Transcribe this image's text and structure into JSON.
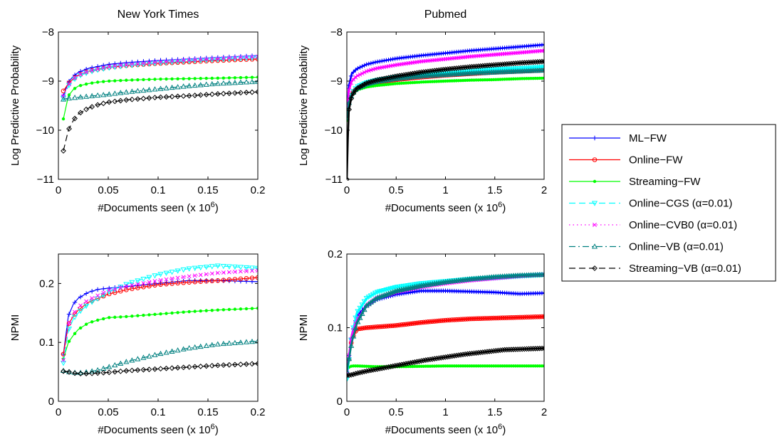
{
  "series_styles": [
    {
      "name": "ML−FW",
      "color": "#0000ff",
      "dash": "",
      "marker": "plus",
      "width": 1.2
    },
    {
      "name": "Online−FW",
      "color": "#ff0000",
      "dash": "",
      "marker": "circle",
      "width": 1.2
    },
    {
      "name": "Streaming−FW",
      "color": "#00ff00",
      "dash": "",
      "marker": "dot",
      "width": 1.2
    },
    {
      "name": "Online−CGS (α=0.01)",
      "color": "#00ffff",
      "dash": "9 5",
      "marker": "tridown",
      "width": 1.2
    },
    {
      "name": "Online−CVB0 (α=0.01)",
      "color": "#ff00ff",
      "dash": "1.5 4",
      "marker": "x",
      "width": 1.2
    },
    {
      "name": "Online−VB (α=0.01)",
      "color": "#008080",
      "dash": "9 4 2 4",
      "marker": "triup",
      "width": 1.2
    },
    {
      "name": "Streaming−VB (α=0.01)",
      "color": "#000000",
      "dash": "9 5",
      "marker": "diamond",
      "width": 1.2
    }
  ],
  "chart_data": [
    {
      "type": "line",
      "title": "New York Times",
      "xlabel": "#Documents seen (x 10",
      "xlabel_sup": "6",
      "xlabel_end": ")",
      "ylabel": "Log Predictive Probability",
      "xlim": [
        0,
        0.2
      ],
      "ylim": [
        -11,
        -8
      ],
      "xticks": [
        0,
        0.05,
        0.1,
        0.15,
        0.2
      ],
      "xticklabels": [
        "0",
        "0.05",
        "0.1",
        "0.15",
        "0.2"
      ],
      "yticks": [
        -11,
        -10,
        -9,
        -8
      ],
      "yticklabels": [
        "−11",
        "−10",
        "−9",
        "−8"
      ],
      "series": [
        {
          "name": "ML−FW",
          "x": [
            0.005,
            0.01,
            0.015,
            0.02,
            0.03,
            0.04,
            0.05,
            0.07,
            0.1,
            0.13,
            0.16,
            0.2
          ],
          "y": [
            -9.3,
            -9.02,
            -8.9,
            -8.82,
            -8.74,
            -8.7,
            -8.66,
            -8.62,
            -8.58,
            -8.55,
            -8.52,
            -8.48
          ]
        },
        {
          "name": "Online−FW",
          "x": [
            0.005,
            0.01,
            0.015,
            0.02,
            0.03,
            0.04,
            0.05,
            0.07,
            0.1,
            0.13,
            0.16,
            0.2
          ],
          "y": [
            -9.2,
            -9.05,
            -8.95,
            -8.88,
            -8.8,
            -8.76,
            -8.72,
            -8.68,
            -8.64,
            -8.61,
            -8.58,
            -8.55
          ]
        },
        {
          "name": "Streaming−FW",
          "x": [
            0.005,
            0.01,
            0.015,
            0.02,
            0.03,
            0.04,
            0.05,
            0.07,
            0.1,
            0.13,
            0.16,
            0.2
          ],
          "y": [
            -9.77,
            -9.3,
            -9.17,
            -9.1,
            -9.05,
            -9.02,
            -9.0,
            -8.98,
            -8.96,
            -8.95,
            -8.94,
            -8.92
          ]
        },
        {
          "name": "Online−CGS (α=0.01)",
          "x": [
            0.005,
            0.01,
            0.015,
            0.02,
            0.03,
            0.04,
            0.05,
            0.07,
            0.1,
            0.13,
            0.16,
            0.2
          ],
          "y": [
            -9.35,
            -9.1,
            -8.98,
            -8.9,
            -8.82,
            -8.77,
            -8.73,
            -8.68,
            -8.63,
            -8.59,
            -8.56,
            -8.52
          ]
        },
        {
          "name": "Online−CVB0 (α=0.01)",
          "x": [
            0.005,
            0.01,
            0.015,
            0.02,
            0.03,
            0.04,
            0.05,
            0.07,
            0.1,
            0.13,
            0.16,
            0.2
          ],
          "y": [
            -9.3,
            -9.08,
            -8.96,
            -8.88,
            -8.8,
            -8.75,
            -8.71,
            -8.66,
            -8.61,
            -8.57,
            -8.54,
            -8.5
          ]
        },
        {
          "name": "Online−VB (α=0.01)",
          "x": [
            0.005,
            0.01,
            0.02,
            0.03,
            0.05,
            0.07,
            0.1,
            0.13,
            0.16,
            0.2
          ],
          "y": [
            -9.37,
            -9.35,
            -9.33,
            -9.31,
            -9.27,
            -9.22,
            -9.16,
            -9.1,
            -9.05,
            -9.01
          ]
        },
        {
          "name": "Streaming−VB (α=0.01)",
          "x": [
            0.005,
            0.01,
            0.015,
            0.02,
            0.03,
            0.04,
            0.05,
            0.07,
            0.1,
            0.13,
            0.16,
            0.2
          ],
          "y": [
            -10.42,
            -10.0,
            -9.8,
            -9.67,
            -9.55,
            -9.48,
            -9.43,
            -9.38,
            -9.33,
            -9.3,
            -9.26,
            -9.22
          ]
        }
      ]
    },
    {
      "type": "line",
      "title": "Pubmed",
      "xlabel": "#Documents seen (x 10",
      "xlabel_sup": "6",
      "xlabel_end": ")",
      "ylabel": "Log Predictive Probability",
      "xlim": [
        0,
        2
      ],
      "ylim": [
        -11,
        -8
      ],
      "xticks": [
        0,
        0.5,
        1,
        1.5,
        2
      ],
      "xticklabels": [
        "0",
        "0.5",
        "1",
        "1.5",
        "2"
      ],
      "yticks": [
        -11,
        -10,
        -9,
        -8
      ],
      "yticklabels": [
        "−11",
        "−10",
        "−9",
        "−8"
      ],
      "series": [
        {
          "name": "ML−FW",
          "x": [
            0.0,
            0.02,
            0.05,
            0.1,
            0.2,
            0.3,
            0.5,
            0.75,
            1.0,
            1.25,
            1.5,
            1.75,
            2.0
          ],
          "y": [
            -9.7,
            -9.1,
            -8.85,
            -8.75,
            -8.66,
            -8.61,
            -8.54,
            -8.48,
            -8.43,
            -8.38,
            -8.34,
            -8.3,
            -8.26
          ]
        },
        {
          "name": "Online−FW",
          "x": [
            0.0,
            0.02,
            0.05,
            0.1,
            0.2,
            0.3,
            0.5,
            0.75,
            1.0,
            1.25,
            1.5,
            1.75,
            2.0
          ],
          "y": [
            -9.7,
            -9.4,
            -9.25,
            -9.15,
            -9.08,
            -9.03,
            -8.97,
            -8.92,
            -8.88,
            -8.85,
            -8.82,
            -8.8,
            -8.78
          ]
        },
        {
          "name": "Streaming−FW",
          "x": [
            0.0,
            0.02,
            0.05,
            0.1,
            0.2,
            0.3,
            0.5,
            0.75,
            1.0,
            1.25,
            1.5,
            1.75,
            2.0
          ],
          "y": [
            -9.8,
            -9.45,
            -9.28,
            -9.18,
            -9.12,
            -9.09,
            -9.05,
            -9.02,
            -9.0,
            -8.98,
            -8.97,
            -8.95,
            -8.94
          ]
        },
        {
          "name": "Online−CGS (α=0.01)",
          "x": [
            0.0,
            0.02,
            0.05,
            0.1,
            0.2,
            0.3,
            0.5,
            0.75,
            1.0,
            1.25,
            1.5,
            1.75,
            2.0
          ],
          "y": [
            -9.75,
            -9.45,
            -9.25,
            -9.12,
            -9.03,
            -8.98,
            -8.92,
            -8.87,
            -8.83,
            -8.79,
            -8.76,
            -8.74,
            -8.71
          ]
        },
        {
          "name": "Online−CVB0 (α=0.01)",
          "x": [
            0.0,
            0.02,
            0.05,
            0.1,
            0.2,
            0.3,
            0.5,
            0.75,
            1.0,
            1.25,
            1.5,
            1.75,
            2.0
          ],
          "y": [
            -9.7,
            -9.2,
            -9.0,
            -8.9,
            -8.8,
            -8.74,
            -8.67,
            -8.6,
            -8.55,
            -8.5,
            -8.46,
            -8.42,
            -8.38
          ]
        },
        {
          "name": "Online−VB (α=0.01)",
          "x": [
            0.0,
            0.02,
            0.05,
            0.1,
            0.2,
            0.3,
            0.5,
            0.75,
            1.0,
            1.25,
            1.5,
            1.75,
            2.0
          ],
          "y": [
            -9.75,
            -9.45,
            -9.27,
            -9.15,
            -9.06,
            -9.01,
            -8.95,
            -8.9,
            -8.87,
            -8.84,
            -8.82,
            -8.8,
            -8.78
          ]
        },
        {
          "name": "Streaming−VB (α=0.01)",
          "x": [
            0.0,
            0.01,
            0.02,
            0.05,
            0.1,
            0.2,
            0.3,
            0.5,
            0.75,
            1.0,
            1.25,
            1.5,
            1.75,
            2.0
          ],
          "y": [
            -11.0,
            -10.2,
            -9.6,
            -9.3,
            -9.15,
            -9.04,
            -8.98,
            -8.9,
            -8.82,
            -8.76,
            -8.71,
            -8.67,
            -8.63,
            -8.6
          ]
        }
      ]
    },
    {
      "type": "line",
      "title": "",
      "xlabel": "#Documents seen (x 10",
      "xlabel_sup": "6",
      "xlabel_end": ")",
      "ylabel": "NPMI",
      "xlim": [
        0,
        0.2
      ],
      "ylim": [
        0,
        0.25
      ],
      "xticks": [
        0,
        0.05,
        0.1,
        0.15,
        0.2
      ],
      "xticklabels": [
        "0",
        "0.05",
        "0.1",
        "0.15",
        "0.2"
      ],
      "yticks": [
        0,
        0.1,
        0.2
      ],
      "yticklabels": [
        "0",
        "0.1",
        "0.2"
      ],
      "series": [
        {
          "name": "ML−FW",
          "x": [
            0.005,
            0.01,
            0.015,
            0.02,
            0.03,
            0.04,
            0.05,
            0.07,
            0.1,
            0.13,
            0.16,
            0.2
          ],
          "y": [
            0.08,
            0.145,
            0.165,
            0.175,
            0.185,
            0.19,
            0.192,
            0.195,
            0.2,
            0.205,
            0.205,
            0.203
          ]
        },
        {
          "name": "Online−FW",
          "x": [
            0.005,
            0.01,
            0.015,
            0.02,
            0.03,
            0.04,
            0.05,
            0.07,
            0.1,
            0.13,
            0.16,
            0.2
          ],
          "y": [
            0.08,
            0.13,
            0.145,
            0.155,
            0.168,
            0.175,
            0.182,
            0.19,
            0.198,
            0.202,
            0.205,
            0.21
          ]
        },
        {
          "name": "Streaming−FW",
          "x": [
            0.005,
            0.01,
            0.015,
            0.02,
            0.03,
            0.04,
            0.05,
            0.07,
            0.1,
            0.13,
            0.16,
            0.2
          ],
          "y": [
            0.072,
            0.1,
            0.112,
            0.122,
            0.133,
            0.138,
            0.142,
            0.144,
            0.148,
            0.152,
            0.155,
            0.158
          ]
        },
        {
          "name": "Online−CGS (α=0.01)",
          "x": [
            0.005,
            0.01,
            0.015,
            0.02,
            0.03,
            0.04,
            0.05,
            0.07,
            0.1,
            0.13,
            0.16,
            0.2
          ],
          "y": [
            0.065,
            0.12,
            0.14,
            0.15,
            0.165,
            0.175,
            0.185,
            0.2,
            0.215,
            0.225,
            0.23,
            0.226
          ]
        },
        {
          "name": "Online−CVB0 (α=0.01)",
          "x": [
            0.005,
            0.01,
            0.015,
            0.02,
            0.03,
            0.04,
            0.05,
            0.07,
            0.1,
            0.13,
            0.16,
            0.2
          ],
          "y": [
            0.07,
            0.13,
            0.148,
            0.16,
            0.172,
            0.18,
            0.188,
            0.196,
            0.205,
            0.212,
            0.218,
            0.222
          ]
        },
        {
          "name": "Online−VB (α=0.01)",
          "x": [
            0.005,
            0.01,
            0.02,
            0.03,
            0.04,
            0.05,
            0.07,
            0.1,
            0.13,
            0.16,
            0.2
          ],
          "y": [
            0.052,
            0.05,
            0.048,
            0.05,
            0.053,
            0.058,
            0.068,
            0.08,
            0.09,
            0.097,
            0.102
          ]
        },
        {
          "name": "Streaming−VB (α=0.01)",
          "x": [
            0.005,
            0.01,
            0.015,
            0.02,
            0.03,
            0.04,
            0.05,
            0.07,
            0.1,
            0.13,
            0.16,
            0.2
          ],
          "y": [
            0.051,
            0.05,
            0.048,
            0.047,
            0.047,
            0.048,
            0.049,
            0.052,
            0.055,
            0.058,
            0.061,
            0.064
          ]
        }
      ]
    },
    {
      "type": "line",
      "title": "",
      "xlabel": "#Documents seen (x 10",
      "xlabel_sup": "6",
      "xlabel_end": ")",
      "ylabel": "NPMI",
      "xlim": [
        0,
        2
      ],
      "ylim": [
        0,
        0.2
      ],
      "xticks": [
        0,
        0.5,
        1,
        1.5,
        2
      ],
      "xticklabels": [
        "0",
        "0.5",
        "1",
        "1.5",
        "2"
      ],
      "yticks": [
        0,
        0.1,
        0.2
      ],
      "yticklabels": [
        "0",
        "0.1",
        "0.2"
      ],
      "series": [
        {
          "name": "ML−FW",
          "x": [
            0.0,
            0.05,
            0.1,
            0.2,
            0.3,
            0.5,
            0.75,
            1.0,
            1.25,
            1.5,
            1.75,
            2.0
          ],
          "y": [
            0.04,
            0.09,
            0.115,
            0.13,
            0.138,
            0.145,
            0.15,
            0.15,
            0.149,
            0.148,
            0.146,
            0.147
          ]
        },
        {
          "name": "Online−FW",
          "x": [
            0.0,
            0.05,
            0.1,
            0.2,
            0.3,
            0.5,
            0.75,
            1.0,
            1.25,
            1.5,
            1.75,
            2.0
          ],
          "y": [
            0.035,
            0.085,
            0.098,
            0.1,
            0.101,
            0.103,
            0.107,
            0.11,
            0.112,
            0.113,
            0.114,
            0.115
          ]
        },
        {
          "name": "Streaming−FW",
          "x": [
            0.0,
            0.05,
            0.1,
            0.3,
            0.5,
            1.0,
            1.5,
            2.0
          ],
          "y": [
            0.045,
            0.048,
            0.048,
            0.047,
            0.047,
            0.048,
            0.048,
            0.048
          ]
        },
        {
          "name": "Online−CGS (α=0.01)",
          "x": [
            0.0,
            0.05,
            0.1,
            0.2,
            0.3,
            0.5,
            0.75,
            1.0,
            1.25,
            1.5,
            1.75,
            2.0
          ],
          "y": [
            0.03,
            0.09,
            0.12,
            0.14,
            0.148,
            0.155,
            0.16,
            0.163,
            0.166,
            0.168,
            0.17,
            0.172
          ]
        },
        {
          "name": "Online−CVB0 (α=0.01)",
          "x": [
            0.0,
            0.05,
            0.1,
            0.2,
            0.3,
            0.5,
            0.75,
            1.0,
            1.25,
            1.5,
            1.75,
            2.0
          ],
          "y": [
            0.04,
            0.09,
            0.11,
            0.13,
            0.14,
            0.148,
            0.155,
            0.16,
            0.164,
            0.167,
            0.17,
            0.172
          ]
        },
        {
          "name": "Online−VB (α=0.01)",
          "x": [
            0.0,
            0.05,
            0.1,
            0.2,
            0.3,
            0.5,
            0.75,
            1.0,
            1.25,
            1.5,
            1.75,
            2.0
          ],
          "y": [
            0.04,
            0.08,
            0.105,
            0.13,
            0.14,
            0.15,
            0.157,
            0.162,
            0.166,
            0.169,
            0.171,
            0.172
          ]
        },
        {
          "name": "Streaming−VB (α=0.01)",
          "x": [
            0.0,
            0.05,
            0.1,
            0.2,
            0.4,
            0.6,
            0.8,
            1.0,
            1.2,
            1.4,
            1.6,
            1.8,
            2.0
          ],
          "y": [
            0.035,
            0.036,
            0.038,
            0.041,
            0.046,
            0.051,
            0.056,
            0.06,
            0.064,
            0.067,
            0.07,
            0.071,
            0.072
          ]
        }
      ]
    }
  ]
}
